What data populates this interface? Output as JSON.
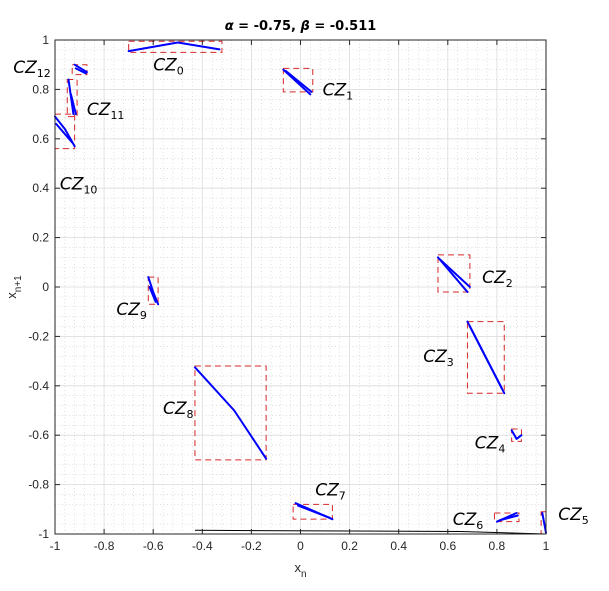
{
  "chart_data": {
    "type": "scatter",
    "title": "α = -0.75, β = -0.511",
    "title_parts": {
      "alpha_symbol": "α",
      "alpha_text": " = -0.75, ",
      "beta_symbol": "β",
      "beta_text": " = -0.511"
    },
    "xlabel": {
      "main": "x",
      "sub": "n"
    },
    "ylabel": {
      "main": "x",
      "sub": "n+1"
    },
    "xlim": [
      -1,
      1
    ],
    "ylim": [
      -1,
      1
    ],
    "grid": true,
    "minor_grid": true,
    "xticks": [
      "-1",
      "-0.8",
      "-0.6",
      "-0.4",
      "-0.2",
      "0",
      "0.2",
      "0.4",
      "0.6",
      "0.8",
      "1"
    ],
    "yticks": [
      "-1",
      "-0.8",
      "-0.6",
      "-0.4",
      "-0.2",
      "0",
      "0.2",
      "0.4",
      "0.6",
      "0.8",
      "1"
    ],
    "colors": {
      "trajectory": "#0000ff",
      "zone_box": "#d62728",
      "baseline": "#000000"
    },
    "zones": [
      {
        "name": "CZ",
        "sub": "0",
        "box": [
          -0.7,
          0.95,
          -0.32,
          0.995
        ],
        "segments": [
          [
            -0.7,
            0.955,
            -0.5,
            0.99,
            -0.33,
            0.962
          ]
        ],
        "label_at": [
          -0.6,
          0.9
        ]
      },
      {
        "name": "CZ",
        "sub": "1",
        "box": [
          -0.07,
          0.79,
          0.05,
          0.885
        ],
        "segments": [
          [
            -0.07,
            0.88,
            0.04,
            0.78
          ],
          [
            -0.06,
            0.875,
            0.045,
            0.79
          ]
        ],
        "label_at": [
          0.09,
          0.8
        ]
      },
      {
        "name": "CZ",
        "sub": "2",
        "box": [
          0.56,
          -0.02,
          0.69,
          0.13
        ],
        "segments": [
          [
            0.56,
            0.12,
            0.68,
            -0.02
          ],
          [
            0.57,
            0.11,
            0.69,
            0.0
          ]
        ],
        "label_at": [
          0.74,
          0.04
        ]
      },
      {
        "name": "CZ",
        "sub": "3",
        "box": [
          0.68,
          -0.43,
          0.83,
          -0.14
        ],
        "segments": [
          [
            0.68,
            -0.14,
            0.83,
            -0.43
          ],
          [
            0.69,
            -0.16,
            0.82,
            -0.41
          ]
        ],
        "label_at": [
          0.5,
          -0.28
        ]
      },
      {
        "name": "CZ",
        "sub": "4",
        "box": [
          0.86,
          -0.625,
          0.9,
          -0.575
        ],
        "segments": [
          [
            0.86,
            -0.58,
            0.88,
            -0.615,
            0.9,
            -0.6
          ]
        ],
        "label_at": [
          0.71,
          -0.63
        ]
      },
      {
        "name": "CZ",
        "sub": "5",
        "box": [
          0.98,
          -1.0,
          1.0,
          -0.91
        ],
        "segments": [
          [
            0.985,
            -0.915,
            1.0,
            -0.995
          ]
        ],
        "label_at": [
          1.05,
          -0.92
        ]
      },
      {
        "name": "CZ",
        "sub": "6",
        "box": [
          0.79,
          -0.95,
          0.89,
          -0.915
        ],
        "segments": [
          [
            0.8,
            -0.95,
            0.88,
            -0.915
          ],
          [
            0.81,
            -0.945,
            0.885,
            -0.925
          ]
        ],
        "label_at": [
          0.62,
          -0.94
        ]
      },
      {
        "name": "CZ",
        "sub": "7",
        "box": [
          -0.03,
          -0.94,
          0.13,
          -0.88
        ],
        "segments": [
          [
            -0.02,
            -0.875,
            0.13,
            -0.94
          ],
          [
            -0.01,
            -0.885,
            0.12,
            -0.935
          ]
        ],
        "label_at": [
          0.06,
          -0.82
        ]
      },
      {
        "name": "CZ",
        "sub": "8",
        "box": [
          -0.43,
          -0.7,
          -0.14,
          -0.32
        ],
        "segments": [
          [
            -0.43,
            -0.325,
            -0.27,
            -0.5,
            -0.14,
            -0.695
          ]
        ],
        "label_at": [
          -0.56,
          -0.49
        ]
      },
      {
        "name": "CZ",
        "sub": "9",
        "box": [
          -0.62,
          -0.07,
          -0.58,
          0.04
        ],
        "segments": [
          [
            -0.62,
            0.04,
            -0.6,
            -0.02,
            -0.58,
            -0.07
          ],
          [
            -0.615,
            0.0,
            -0.59,
            -0.06
          ]
        ],
        "label_at": [
          -0.75,
          -0.09
        ]
      },
      {
        "name": "CZ",
        "sub": "10",
        "box": [
          -1.0,
          0.56,
          -0.92,
          0.7
        ],
        "segments": [
          [
            -1.0,
            0.69,
            -0.96,
            0.64,
            -0.92,
            0.57
          ],
          [
            -0.995,
            0.66,
            -0.93,
            0.585
          ]
        ],
        "label_at": [
          -0.98,
          0.42
        ]
      },
      {
        "name": "CZ",
        "sub": "11",
        "box": [
          -0.95,
          0.69,
          -0.91,
          0.84
        ],
        "segments": [
          [
            -0.945,
            0.84,
            -0.925,
            0.7
          ],
          [
            -0.935,
            0.78,
            -0.915,
            0.7
          ]
        ],
        "label_at": [
          -0.87,
          0.72
        ]
      },
      {
        "name": "CZ",
        "sub": "12",
        "box": [
          -0.93,
          0.86,
          -0.87,
          0.9
        ],
        "segments": [
          [
            -0.92,
            0.9,
            -0.87,
            0.87
          ],
          [
            -0.915,
            0.885,
            -0.875,
            0.865
          ]
        ],
        "label_at": [
          -1.17,
          0.89
        ]
      }
    ],
    "baseline": [
      [
        -0.43,
        -0.985
      ],
      [
        0.65,
        -0.99
      ],
      [
        1.0,
        -1.0
      ]
    ]
  }
}
